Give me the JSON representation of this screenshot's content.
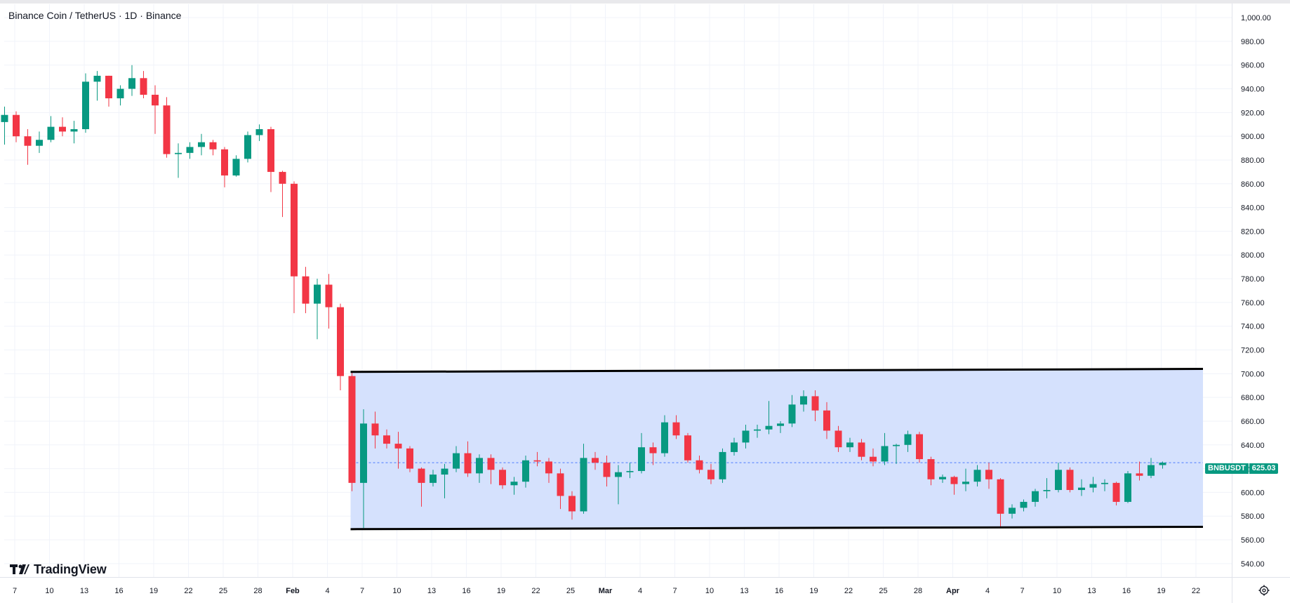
{
  "header": {
    "symbol": "Binance Coin / TetherUS · 1D · Binance"
  },
  "branding": {
    "logo_text": "TradingView"
  },
  "price_tag": {
    "symbol": "BNBUSDT",
    "value": "625.03"
  },
  "icons": {
    "settings": "gear-icon",
    "logo": "tradingview-logo-icon"
  },
  "colors": {
    "up": "#089981",
    "down": "#f23645",
    "channel_fill": "#d3dffd",
    "channel_line": "#000000",
    "last_price_line": "#2962ff",
    "grid": "#f0f3fa",
    "axis_text": "#131722"
  },
  "chart_data": {
    "type": "candlestick",
    "title": "Binance Coin / TetherUS · 1D · Binance",
    "xlabel": "",
    "ylabel": "",
    "ylim": [
      534,
      1003
    ],
    "y_ticks": [
      "1,000.00",
      "980.00",
      "960.00",
      "940.00",
      "920.00",
      "900.00",
      "880.00",
      "860.00",
      "840.00",
      "820.00",
      "800.00",
      "780.00",
      "760.00",
      "740.00",
      "720.00",
      "700.00",
      "680.00",
      "660.00",
      "640.00",
      "620.00",
      "600.00",
      "580.00",
      "560.00",
      "540.00"
    ],
    "x_ticks": [
      "7",
      "10",
      "13",
      "16",
      "19",
      "22",
      "25",
      "28",
      "Feb",
      "4",
      "7",
      "10",
      "13",
      "16",
      "19",
      "22",
      "25",
      "Mar",
      "4",
      "7",
      "10",
      "13",
      "16",
      "19",
      "22",
      "25",
      "28",
      "Apr",
      "4",
      "7",
      "10",
      "13",
      "16",
      "19",
      "22"
    ],
    "last_price": 625.03,
    "series": [
      {
        "candles": [
          {
            "o": 912,
            "h": 925,
            "l": 893,
            "c": 918
          },
          {
            "o": 918,
            "h": 921,
            "l": 895,
            "c": 900
          },
          {
            "o": 900,
            "h": 906,
            "l": 876,
            "c": 892
          },
          {
            "o": 892,
            "h": 904,
            "l": 886,
            "c": 897
          },
          {
            "o": 897,
            "h": 917,
            "l": 895,
            "c": 908
          },
          {
            "o": 908,
            "h": 916,
            "l": 900,
            "c": 904
          },
          {
            "o": 904,
            "h": 913,
            "l": 894,
            "c": 906
          },
          {
            "o": 906,
            "h": 953,
            "l": 903,
            "c": 946
          },
          {
            "o": 946,
            "h": 955,
            "l": 930,
            "c": 951
          },
          {
            "o": 951,
            "h": 951,
            "l": 925,
            "c": 932
          },
          {
            "o": 932,
            "h": 943,
            "l": 926,
            "c": 940
          },
          {
            "o": 940,
            "h": 960,
            "l": 934,
            "c": 949
          },
          {
            "o": 949,
            "h": 955,
            "l": 932,
            "c": 935
          },
          {
            "o": 935,
            "h": 943,
            "l": 902,
            "c": 926
          },
          {
            "o": 926,
            "h": 933,
            "l": 882,
            "c": 885
          },
          {
            "o": 885,
            "h": 894,
            "l": 865,
            "c": 886
          },
          {
            "o": 886,
            "h": 895,
            "l": 881,
            "c": 891
          },
          {
            "o": 891,
            "h": 902,
            "l": 884,
            "c": 895
          },
          {
            "o": 895,
            "h": 897,
            "l": 884,
            "c": 889
          },
          {
            "o": 889,
            "h": 891,
            "l": 857,
            "c": 867
          },
          {
            "o": 867,
            "h": 884,
            "l": 866,
            "c": 881
          },
          {
            "o": 881,
            "h": 904,
            "l": 878,
            "c": 901
          },
          {
            "o": 901,
            "h": 910,
            "l": 896,
            "c": 906
          },
          {
            "o": 906,
            "h": 908,
            "l": 853,
            "c": 870
          },
          {
            "o": 870,
            "h": 871,
            "l": 832,
            "c": 860
          },
          {
            "o": 860,
            "h": 862,
            "l": 751,
            "c": 782
          },
          {
            "o": 782,
            "h": 790,
            "l": 751,
            "c": 759
          },
          {
            "o": 759,
            "h": 780,
            "l": 729,
            "c": 775
          },
          {
            "o": 775,
            "h": 784,
            "l": 738,
            "c": 756
          },
          {
            "o": 756,
            "h": 759,
            "l": 686,
            "c": 698
          },
          {
            "o": 698,
            "h": 702,
            "l": 601,
            "c": 608
          },
          {
            "o": 608,
            "h": 670,
            "l": 570,
            "c": 658
          },
          {
            "o": 658,
            "h": 668,
            "l": 637,
            "c": 648
          },
          {
            "o": 648,
            "h": 653,
            "l": 637,
            "c": 641
          },
          {
            "o": 641,
            "h": 651,
            "l": 620,
            "c": 637
          },
          {
            "o": 637,
            "h": 639,
            "l": 617,
            "c": 620
          },
          {
            "o": 620,
            "h": 621,
            "l": 588,
            "c": 608
          },
          {
            "o": 608,
            "h": 619,
            "l": 605,
            "c": 615
          },
          {
            "o": 615,
            "h": 624,
            "l": 595,
            "c": 620
          },
          {
            "o": 620,
            "h": 639,
            "l": 617,
            "c": 633
          },
          {
            "o": 633,
            "h": 643,
            "l": 613,
            "c": 616
          },
          {
            "o": 616,
            "h": 632,
            "l": 608,
            "c": 629
          },
          {
            "o": 629,
            "h": 632,
            "l": 607,
            "c": 619
          },
          {
            "o": 619,
            "h": 621,
            "l": 603,
            "c": 606
          },
          {
            "o": 606,
            "h": 613,
            "l": 598,
            "c": 609
          },
          {
            "o": 609,
            "h": 631,
            "l": 604,
            "c": 627
          },
          {
            "o": 627,
            "h": 634,
            "l": 622,
            "c": 626
          },
          {
            "o": 626,
            "h": 629,
            "l": 608,
            "c": 616
          },
          {
            "o": 616,
            "h": 620,
            "l": 586,
            "c": 597
          },
          {
            "o": 597,
            "h": 601,
            "l": 577,
            "c": 584
          },
          {
            "o": 584,
            "h": 641,
            "l": 582,
            "c": 629
          },
          {
            "o": 629,
            "h": 634,
            "l": 619,
            "c": 625
          },
          {
            "o": 625,
            "h": 631,
            "l": 605,
            "c": 613
          },
          {
            "o": 613,
            "h": 623,
            "l": 590,
            "c": 617
          },
          {
            "o": 617,
            "h": 625,
            "l": 612,
            "c": 618
          },
          {
            "o": 618,
            "h": 650,
            "l": 616,
            "c": 638
          },
          {
            "o": 638,
            "h": 642,
            "l": 623,
            "c": 633
          },
          {
            "o": 633,
            "h": 665,
            "l": 630,
            "c": 659
          },
          {
            "o": 659,
            "h": 665,
            "l": 645,
            "c": 648
          },
          {
            "o": 648,
            "h": 650,
            "l": 625,
            "c": 627
          },
          {
            "o": 627,
            "h": 631,
            "l": 616,
            "c": 619
          },
          {
            "o": 619,
            "h": 624,
            "l": 607,
            "c": 611
          },
          {
            "o": 611,
            "h": 637,
            "l": 608,
            "c": 634
          },
          {
            "o": 634,
            "h": 646,
            "l": 631,
            "c": 642
          },
          {
            "o": 642,
            "h": 657,
            "l": 637,
            "c": 652
          },
          {
            "o": 652,
            "h": 657,
            "l": 646,
            "c": 653
          },
          {
            "o": 653,
            "h": 677,
            "l": 649,
            "c": 656
          },
          {
            "o": 656,
            "h": 660,
            "l": 650,
            "c": 658
          },
          {
            "o": 658,
            "h": 682,
            "l": 655,
            "c": 674
          },
          {
            "o": 674,
            "h": 686,
            "l": 668,
            "c": 681
          },
          {
            "o": 681,
            "h": 686,
            "l": 660,
            "c": 669
          },
          {
            "o": 669,
            "h": 676,
            "l": 645,
            "c": 652
          },
          {
            "o": 652,
            "h": 656,
            "l": 634,
            "c": 638
          },
          {
            "o": 638,
            "h": 646,
            "l": 634,
            "c": 642
          },
          {
            "o": 642,
            "h": 645,
            "l": 627,
            "c": 630
          },
          {
            "o": 630,
            "h": 637,
            "l": 622,
            "c": 626
          },
          {
            "o": 626,
            "h": 650,
            "l": 623,
            "c": 639
          },
          {
            "o": 639,
            "h": 641,
            "l": 624,
            "c": 640
          },
          {
            "o": 640,
            "h": 652,
            "l": 634,
            "c": 649
          },
          {
            "o": 649,
            "h": 651,
            "l": 625,
            "c": 628
          },
          {
            "o": 628,
            "h": 630,
            "l": 606,
            "c": 611
          },
          {
            "o": 611,
            "h": 615,
            "l": 608,
            "c": 613
          },
          {
            "o": 613,
            "h": 614,
            "l": 598,
            "c": 607
          },
          {
            "o": 607,
            "h": 620,
            "l": 601,
            "c": 609
          },
          {
            "o": 609,
            "h": 623,
            "l": 605,
            "c": 619
          },
          {
            "o": 619,
            "h": 625,
            "l": 603,
            "c": 611
          },
          {
            "o": 611,
            "h": 612,
            "l": 571,
            "c": 582
          },
          {
            "o": 582,
            "h": 590,
            "l": 578,
            "c": 587
          },
          {
            "o": 587,
            "h": 594,
            "l": 584,
            "c": 592
          },
          {
            "o": 592,
            "h": 603,
            "l": 588,
            "c": 601
          },
          {
            "o": 601,
            "h": 612,
            "l": 595,
            "c": 602
          },
          {
            "o": 602,
            "h": 625,
            "l": 600,
            "c": 619
          },
          {
            "o": 619,
            "h": 621,
            "l": 600,
            "c": 602
          },
          {
            "o": 602,
            "h": 611,
            "l": 597,
            "c": 604
          },
          {
            "o": 604,
            "h": 613,
            "l": 600,
            "c": 607
          },
          {
            "o": 607,
            "h": 611,
            "l": 601,
            "c": 608
          },
          {
            "o": 608,
            "h": 609,
            "l": 589,
            "c": 592
          },
          {
            "o": 592,
            "h": 618,
            "l": 591,
            "c": 616
          },
          {
            "o": 616,
            "h": 626,
            "l": 610,
            "c": 614
          },
          {
            "o": 614,
            "h": 629,
            "l": 612,
            "c": 623
          },
          {
            "o": 623,
            "h": 626,
            "l": 620,
            "c": 625
          }
        ]
      }
    ]
  }
}
